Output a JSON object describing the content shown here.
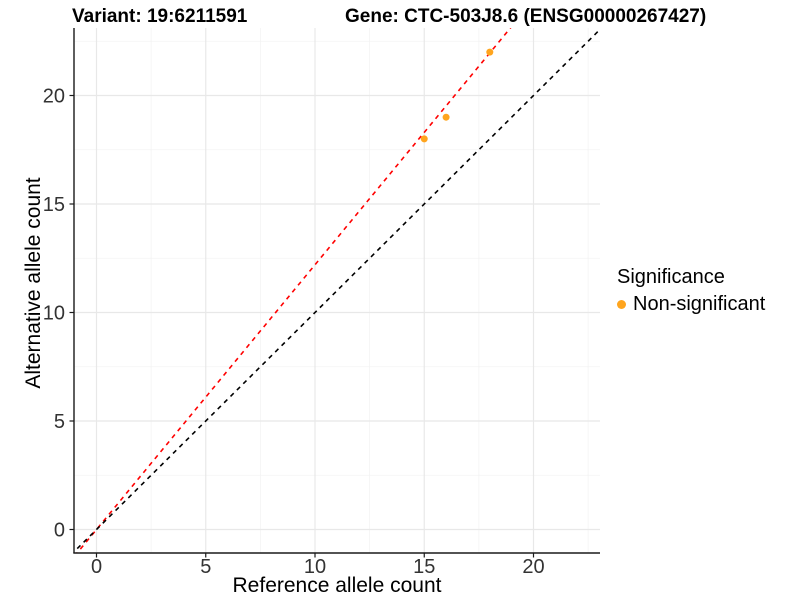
{
  "titles": {
    "variant": "Variant: 19:6211591",
    "gene": "Gene: CTC-503J8.6 (ENSG00000267427)"
  },
  "chart_data": {
    "type": "scatter",
    "xlabel": "Reference allele count",
    "ylabel": "Alternative allele count",
    "xlim": [
      -1.05,
      23.05
    ],
    "ylim": [
      -1.07,
      23.1
    ],
    "xticks": [
      0,
      5,
      10,
      15,
      20
    ],
    "yticks": [
      0,
      5,
      10,
      15,
      20
    ],
    "x_minor": [
      2.5,
      7.5,
      12.5,
      17.5,
      22.5
    ],
    "y_minor": [
      2.5,
      7.5,
      12.5,
      17.5,
      22.5
    ],
    "grid": true,
    "series": [
      {
        "name": "Non-significant",
        "color": "#FFA51E",
        "points": [
          [
            15,
            18
          ],
          [
            16,
            19
          ],
          [
            18,
            22
          ]
        ]
      }
    ],
    "lines": [
      {
        "name": "fit-line",
        "color": "#FF0000",
        "style": "dashed",
        "slope": 1.22,
        "intercept": 0
      },
      {
        "name": "identity-line",
        "color": "#000000",
        "style": "dashed",
        "slope": 1.0,
        "intercept": 0
      }
    ],
    "legend": {
      "position": "right",
      "title": "Significance",
      "entries": [
        {
          "label": "Non-significant",
          "color": "#FFA51E"
        }
      ]
    }
  },
  "colors": {
    "grid_major": "#E8E8E8",
    "grid_minor": "#F3F3F3",
    "axis_line": "#1a1a1a",
    "tick_text": "#333333",
    "point_orange": "#FFA51E"
  }
}
